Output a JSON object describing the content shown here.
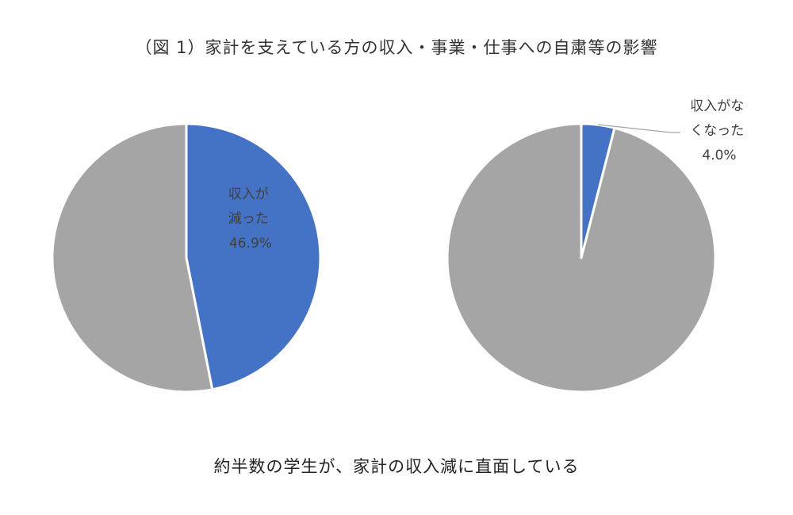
{
  "title": "（図 1）家計を支えている方の収入・事業・仕事への自粛等の影響",
  "caption": "約半数の学生が、家計の収入減に直面している",
  "colors": {
    "highlight": "#4472C4",
    "rest": "#A5A5A5",
    "stroke": "#FFFFFF",
    "leader": "#A5A5A5"
  },
  "chart_data": [
    {
      "type": "pie",
      "start_angle": "12 o'clock",
      "direction": "clockwise",
      "slices": [
        {
          "label": "収入が減った",
          "value": 46.9,
          "color": "#4472C4"
        },
        {
          "label": "",
          "value": 53.1,
          "color": "#A5A5A5"
        }
      ],
      "data_label": {
        "lines": [
          "収入が",
          "減った",
          "46.9%"
        ]
      }
    },
    {
      "type": "pie",
      "start_angle": "12 o'clock",
      "direction": "clockwise",
      "slices": [
        {
          "label": "収入がなくなった",
          "value": 4.0,
          "color": "#4472C4"
        },
        {
          "label": "",
          "value": 96.0,
          "color": "#A5A5A5"
        }
      ],
      "data_label": {
        "lines": [
          "収入がな",
          "くなった",
          "4.0%"
        ]
      }
    }
  ]
}
